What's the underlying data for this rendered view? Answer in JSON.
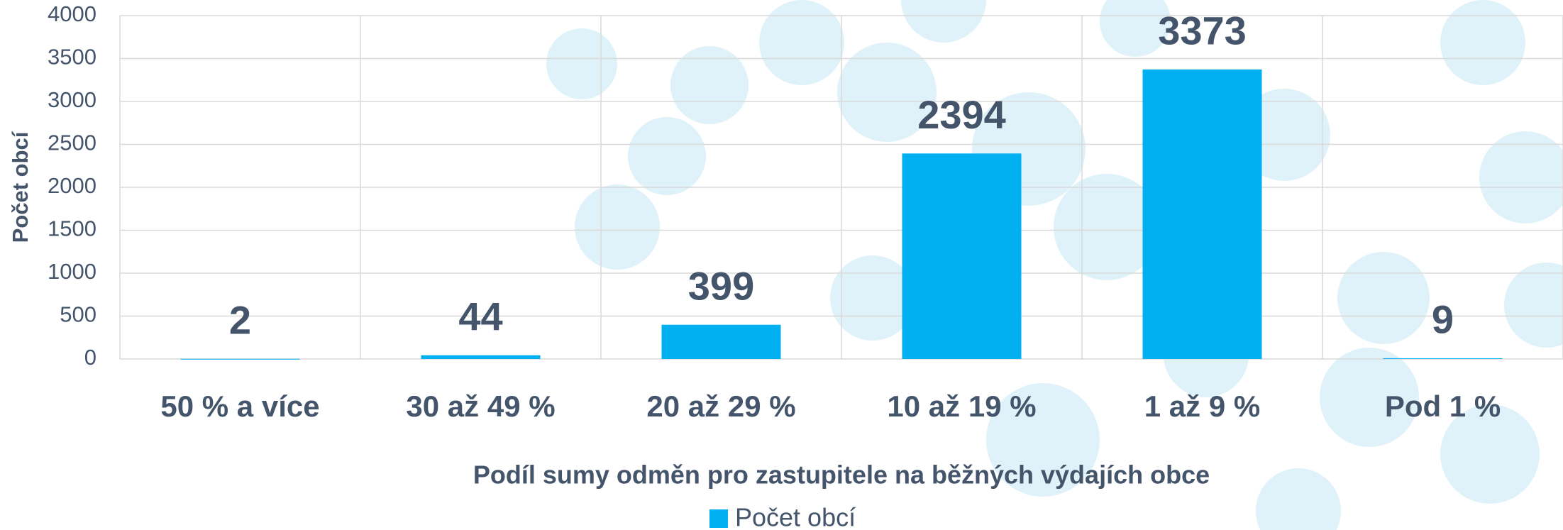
{
  "chart_data": {
    "type": "bar",
    "x_label": "Podíl sumy odměn pro zastupitele na běžných výdajích obce",
    "y_label": "Počet obcí",
    "categories": [
      "50 % a více",
      "30 až 49 %",
      "20 až 29 %",
      "10 až 19 %",
      "1 až 9 %",
      "Pod 1 %"
    ],
    "series": [
      {
        "name": "Počet obcí",
        "color": "#00b0f0",
        "values": [
          2,
          44,
          399,
          2394,
          3373,
          9
        ]
      }
    ],
    "ylim": [
      0,
      4000
    ],
    "yticks": [
      0,
      500,
      1000,
      1500,
      2000,
      2500,
      3000,
      3500,
      4000
    ],
    "grid": true,
    "legend": "bottom"
  }
}
